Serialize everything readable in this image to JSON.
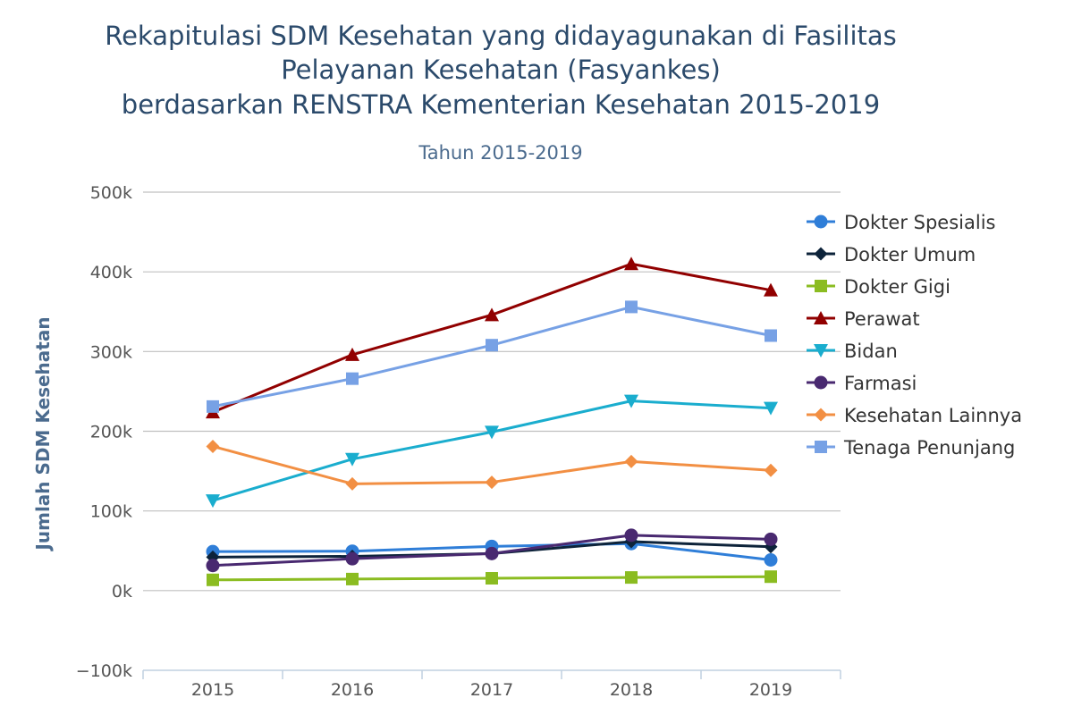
{
  "chart_data": {
    "type": "line",
    "title": [
      "Rekapitulasi SDM Kesehatan yang didayagunakan di Fasilitas",
      "Pelayanan Kesehatan (Fasyankes)",
      "berdasarkan RENSTRA Kementerian Kesehatan 2015-2019"
    ],
    "subtitle": "Tahun 2015-2019",
    "ylabel": "Jumlah SDM Kesehatan",
    "xlabel": "",
    "categories": [
      "2015",
      "2016",
      "2017",
      "2018",
      "2019"
    ],
    "ylim": [
      -100000,
      500000
    ],
    "yticks": [
      -100000,
      0,
      100000,
      200000,
      300000,
      400000,
      500000
    ],
    "ytick_labels": [
      "−100k",
      "0k",
      "100k",
      "200k",
      "300k",
      "400k",
      "500k"
    ],
    "grid": true,
    "legend_position": "right",
    "series": [
      {
        "name": "Dokter Spesialis",
        "color": "#2f7ed8",
        "marker": "circle",
        "values": [
          49000,
          49500,
          55500,
          59000,
          38500
        ]
      },
      {
        "name": "Dokter Umum",
        "color": "#0d233a",
        "marker": "diamond",
        "values": [
          42000,
          43000,
          46500,
          61500,
          55000
        ]
      },
      {
        "name": "Dokter Gigi",
        "color": "#8bbc21",
        "marker": "square",
        "values": [
          13500,
          14500,
          15500,
          16500,
          17500
        ]
      },
      {
        "name": "Perawat",
        "color": "#910000",
        "marker": "triangle",
        "values": [
          224000,
          296000,
          346000,
          410000,
          377000
        ]
      },
      {
        "name": "Bidan",
        "color": "#1aadce",
        "marker": "triangle-down",
        "values": [
          113000,
          165000,
          199000,
          238000,
          229000
        ]
      },
      {
        "name": "Farmasi",
        "color": "#492970",
        "marker": "circle",
        "values": [
          31500,
          40000,
          46500,
          69500,
          64500
        ]
      },
      {
        "name": "Kesehatan Lainnya",
        "color": "#f28f43",
        "marker": "diamond",
        "values": [
          181000,
          134000,
          136000,
          162000,
          151000
        ]
      },
      {
        "name": "Tenaga Penunjang",
        "color": "#77a1e5",
        "marker": "square",
        "values": [
          231000,
          266000,
          308000,
          356000,
          320000
        ]
      }
    ]
  }
}
